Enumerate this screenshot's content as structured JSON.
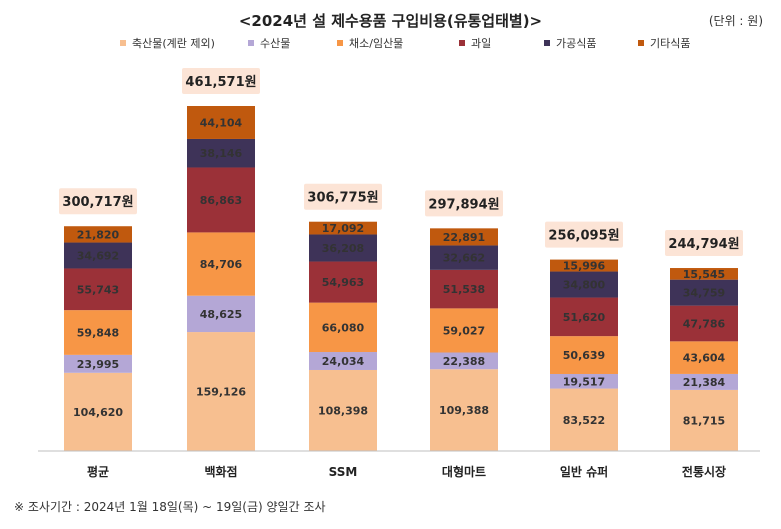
{
  "chart_data": {
    "type": "bar",
    "stacked": true,
    "title": "<2024년 설 제수용품 구입비용(유통업태별)>",
    "unit": "(단위 : 원)",
    "categories": [
      "평균",
      "백화점",
      "SSM",
      "대형마트",
      "일반 슈퍼",
      "전통시장"
    ],
    "totals": [
      "300,717원",
      "461,571원",
      "306,775원",
      "297,894원",
      "256,095원",
      "244,794원"
    ],
    "series": [
      {
        "name": "축산물(계란 제외)",
        "color": "#f7bf90",
        "values": [
          104620,
          159126,
          108398,
          109388,
          83522,
          81715
        ]
      },
      {
        "name": "수산물",
        "color": "#b4a7d6",
        "values": [
          23995,
          48625,
          24034,
          22388,
          19517,
          21384
        ]
      },
      {
        "name": "채소/임산물",
        "color": "#f79646",
        "values": [
          59848,
          84706,
          66080,
          59027,
          50639,
          43604
        ]
      },
      {
        "name": "과일",
        "color": "#9b3138",
        "values": [
          55743,
          86863,
          54963,
          51538,
          51620,
          47786
        ]
      },
      {
        "name": "가공식품",
        "color": "#3e3358",
        "values": [
          34692,
          38146,
          36208,
          32662,
          34800,
          34759
        ]
      },
      {
        "name": "기타식품",
        "color": "#c0590e",
        "values": [
          21820,
          44104,
          17092,
          22891,
          15996,
          15545
        ]
      }
    ],
    "legend_position": "top",
    "grid": false
  },
  "footnote": "※ 조사기간 : 2024년 1월 18일(목) ~ 19일(금) 양일간 조사"
}
